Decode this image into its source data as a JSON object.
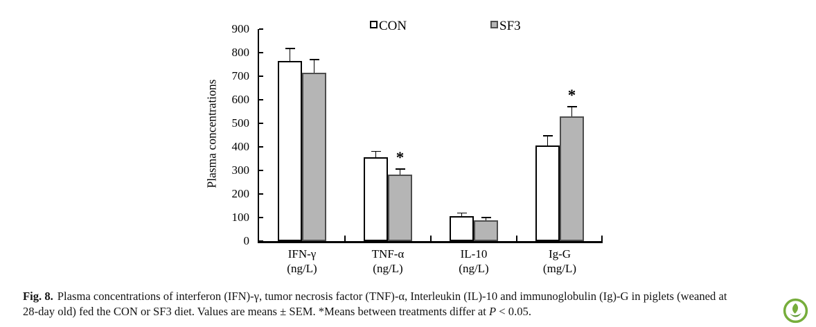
{
  "figure": {
    "caption": {
      "bold_label": "Fig. 8.",
      "line1_rest": "Plasma concentrations of interferon (IFN)-γ, tumor necrosis factor (TNF)-α, Interleukin (IL)-10 and immunoglobulin (Ig)-G in piglets (weaned at",
      "line2_before_p": "28-day old) fed the CON or SF3 diet. Values are means ± SEM. *Means between treatments differ at ",
      "p_symbol": "P",
      "line2_after_p": " < 0.05."
    },
    "logo": {
      "ring_color": "#76ad3b",
      "accent_color": "#5a9632"
    }
  },
  "chart_data": {
    "type": "bar",
    "title": "",
    "ylabel": "Plasma concentrations",
    "xlabel": "",
    "ylim": [
      0,
      900
    ],
    "yticks": [
      0,
      100,
      200,
      300,
      400,
      500,
      600,
      700,
      800,
      900
    ],
    "grid": false,
    "legend_position": "top-center",
    "sig_marker": "*",
    "categories": [
      "IFN-γ",
      "TNF-α",
      "IL-10",
      "Ig-G"
    ],
    "category_units": [
      "(ng/L)",
      "(ng/L)",
      "(ng/L)",
      "(mg/L)"
    ],
    "series": [
      {
        "name": "CON",
        "fill": "#ffffff",
        "border": "#000000",
        "values": [
          765,
          355,
          107,
          407
        ],
        "errors": [
          52,
          26,
          12,
          40
        ],
        "sig": [
          false,
          false,
          false,
          false
        ]
      },
      {
        "name": "SF3",
        "fill": "#b5b5b5",
        "border": "#4d4d4d",
        "values": [
          715,
          282,
          88,
          528
        ],
        "errors": [
          56,
          24,
          12,
          42
        ],
        "sig": [
          false,
          true,
          false,
          true
        ]
      }
    ]
  }
}
